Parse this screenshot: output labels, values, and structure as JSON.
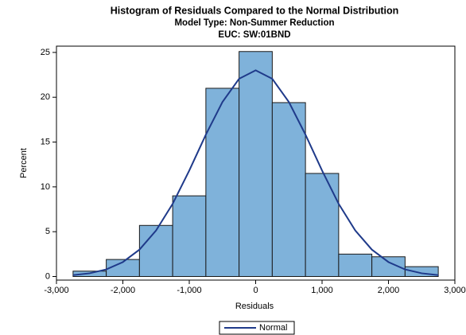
{
  "chart_data": {
    "type": "histogram",
    "title": "Histogram of Residuals Compared to the Normal Distribution",
    "subtitles": [
      "Model Type: Non-Summer Reduction",
      "EUC: SW:01BND"
    ],
    "x_label": "Residuals",
    "y_label": "Percent",
    "bins": [
      -2750,
      -2250,
      -1750,
      -1250,
      -750,
      -250,
      250,
      750,
      1250,
      1750,
      2250,
      2750
    ],
    "values": [
      0.6,
      1.9,
      5.7,
      9.0,
      21.0,
      25.1,
      19.4,
      11.5,
      2.5,
      2.2,
      1.1
    ],
    "color": "#7fb2da",
    "edge_color": "#1a1a1a",
    "curve": {
      "name": "Normal",
      "color": "#1f3a8a",
      "x": [
        -2750,
        -2500,
        -2250,
        -2000,
        -1750,
        -1500,
        -1250,
        -1000,
        -750,
        -500,
        -250,
        0,
        250,
        500,
        750,
        1000,
        1250,
        1500,
        1750,
        2000,
        2250,
        2500,
        2750
      ],
      "values": [
        0.15,
        0.36,
        0.79,
        1.61,
        3.0,
        5.13,
        8.11,
        11.82,
        15.83,
        19.47,
        22.06,
        23.0,
        22.06,
        19.47,
        15.83,
        11.82,
        8.11,
        5.13,
        3.0,
        1.61,
        0.79,
        0.36,
        0.15
      ]
    },
    "xlim": [
      -3000,
      3000
    ],
    "xticks": [
      {
        "value": -3000,
        "label": "-3,000"
      },
      {
        "value": -2000,
        "label": "-2,000"
      },
      {
        "value": -1000,
        "label": "-1,000"
      },
      0,
      {
        "value": 1000,
        "label": "1,000"
      },
      {
        "value": 2000,
        "label": "2,000"
      },
      {
        "value": 3000,
        "label": "3,000"
      }
    ],
    "ylim": [
      -0.4,
      25.7
    ],
    "yticks": [
      0,
      5,
      10,
      15,
      20,
      25
    ],
    "legend": "bottom"
  }
}
